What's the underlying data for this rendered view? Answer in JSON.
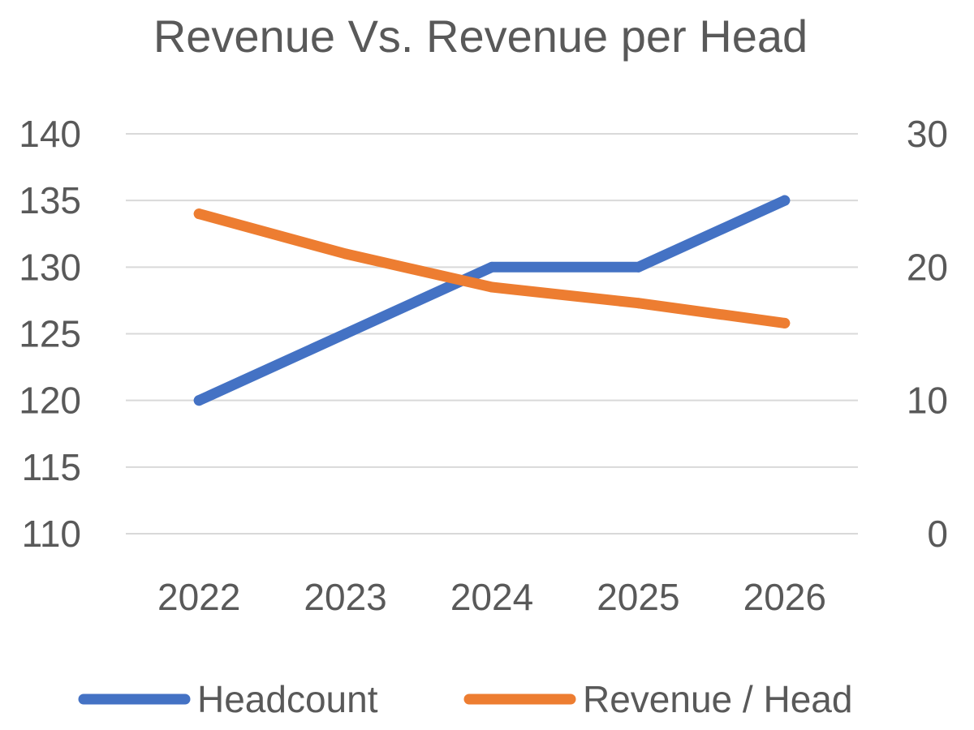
{
  "chart_data": {
    "type": "line",
    "title": "Revenue Vs. Revenue per Head",
    "categories": [
      "2022",
      "2023",
      "2024",
      "2025",
      "2026"
    ],
    "series": [
      {
        "name": "Headcount",
        "axis": "left",
        "color": "#4472C4",
        "values": [
          120,
          125,
          130,
          130,
          135
        ]
      },
      {
        "name": "Revenue / Head",
        "axis": "right",
        "color": "#ED7D31",
        "values": [
          24,
          21,
          18.5,
          17.3,
          15.8
        ]
      }
    ],
    "y_left": {
      "min": 110,
      "max": 140,
      "ticks": [
        "110",
        "115",
        "120",
        "125",
        "130",
        "135",
        "140"
      ]
    },
    "y_right": {
      "min": 0,
      "max": 30,
      "ticks": [
        "0",
        "10",
        "20",
        "30"
      ]
    },
    "grid": true,
    "legend": "bottom"
  }
}
